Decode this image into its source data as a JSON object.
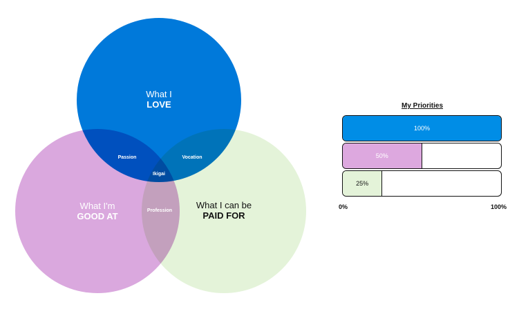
{
  "venn": {
    "love": {
      "line1": "What I",
      "line2": "LOVE",
      "color": "#0079DA"
    },
    "good_at": {
      "line1": "What I'm",
      "line2": "GOOD AT",
      "color": "#DAA8DE"
    },
    "paid_for": {
      "line1": "What I can be",
      "line2": "PAID FOR",
      "color": "#E4F3D9"
    },
    "overlaps": {
      "passion": "Passion",
      "vocation": "Vocation",
      "profession": "Profession",
      "ikigai": "Ikigai"
    }
  },
  "priorities": {
    "title": "My Priorities",
    "bars": [
      {
        "label": "100%",
        "value": 1.0,
        "color": "#008DE6",
        "text_color": "#ffffff"
      },
      {
        "label": "50%",
        "value": 0.5,
        "color": "#DDA8DF",
        "text_color": "#ffffff"
      },
      {
        "label": "25%",
        "value": 0.25,
        "color": "#E4F3D9",
        "text_color": "#111111"
      }
    ],
    "axis_min": "0%",
    "axis_max": "100%"
  }
}
